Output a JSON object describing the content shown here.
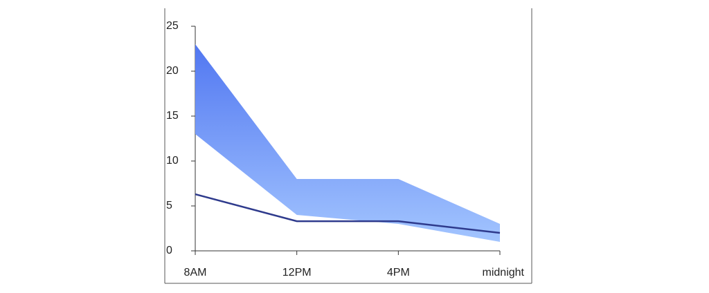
{
  "chart_data": {
    "type": "line",
    "categories": [
      "8AM",
      "12PM",
      "4PM",
      "midnight"
    ],
    "band": {
      "color_top": "#4a70f0",
      "color_bottom": "#a6c8ff",
      "upper": [
        23,
        8,
        8,
        3
      ],
      "lower": [
        13,
        4,
        3,
        1
      ]
    },
    "series": [
      {
        "color": "#2e3a8c",
        "values": [
          6.3,
          3.3,
          3.3,
          2
        ]
      }
    ],
    "ylim": [
      0,
      25
    ],
    "yticks": [
      0,
      5,
      10,
      15,
      20,
      25
    ]
  }
}
